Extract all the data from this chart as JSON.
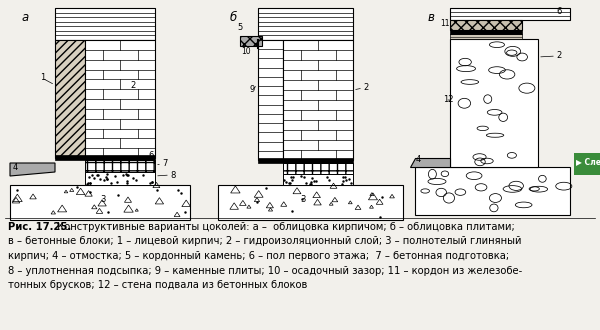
{
  "bg_color": "#f2f0eb",
  "fig_width": 6.0,
  "fig_height": 3.3,
  "dpi": 100,
  "caption_fontsize": 7.2,
  "label_fontsize": 8.5,
  "green_button_color": "#3a8c3a",
  "green_button_text": "Сле",
  "caption_lines": [
    {
      "bold": "Рис. 17.25.",
      "normal": " Конструктивные варианты цоколей: а –  облицовка кирпичом; б – облицовка плитами;"
    },
    {
      "bold": "",
      "normal": "в – бетонные блоки; 1 – лицевой кирпич; 2 – гидроизоляционный слой; 3 – полнотелый глиняный"
    },
    {
      "bold": "",
      "normal": "кирпич; 4 – отмостка; 5 – кордонный камень; 6 – пол первого этажа;  7 – бетонная подготовка;"
    },
    {
      "bold": "",
      "normal": "8 – уплотненная подсыпка; 9 – каменные плиты; 10 – осадочный зазор; 11 – кордон из железобе-"
    },
    {
      "bold": "",
      "normal": "тонных брусков; 12 – стена подвала из бетонных блоков"
    }
  ]
}
